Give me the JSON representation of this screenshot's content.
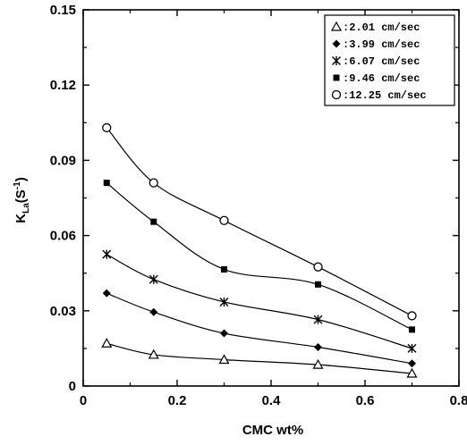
{
  "chart_data": {
    "type": "line",
    "title": "",
    "xlabel": "CMC wt%",
    "ylabel_main": "K",
    "ylabel_sub": "La",
    "ylabel_tail": "(S",
    "ylabel_exp": "-1",
    "ylabel_close": ")",
    "xlim": [
      0,
      0.8
    ],
    "ylim": [
      0,
      0.15
    ],
    "x_ticks": [
      0,
      0.2,
      0.4,
      0.6,
      0.8
    ],
    "x_tick_labels": [
      "0",
      "0.2",
      "0.4",
      "0.6",
      "0.8"
    ],
    "y_ticks": [
      0,
      0.03,
      0.06,
      0.09,
      0.12,
      0.15
    ],
    "y_tick_labels": [
      "0",
      "0.03",
      "0.06",
      "0.09",
      "0.12",
      "0.15"
    ],
    "grid": false,
    "legend_position": "top-right",
    "x": [
      0.05,
      0.15,
      0.3,
      0.5,
      0.7
    ],
    "series": [
      {
        "name": ":2.01 cm/sec",
        "marker": "triangle-open",
        "values": [
          0.017,
          0.0125,
          0.0105,
          0.0085,
          0.005
        ]
      },
      {
        "name": ":3.99 cm/sec",
        "marker": "diamond-filled",
        "values": [
          0.037,
          0.0295,
          0.021,
          0.0155,
          0.009
        ]
      },
      {
        "name": ":6.07 cm/sec",
        "marker": "star",
        "values": [
          0.0525,
          0.0425,
          0.0335,
          0.0265,
          0.015
        ]
      },
      {
        "name": ":9.46 cm/sec",
        "marker": "square-filled",
        "values": [
          0.081,
          0.0655,
          0.0465,
          0.0405,
          0.0225
        ]
      },
      {
        "name": ":12.25 cm/sec",
        "marker": "circle-open",
        "values": [
          0.103,
          0.081,
          0.066,
          0.0475,
          0.028
        ]
      }
    ]
  }
}
